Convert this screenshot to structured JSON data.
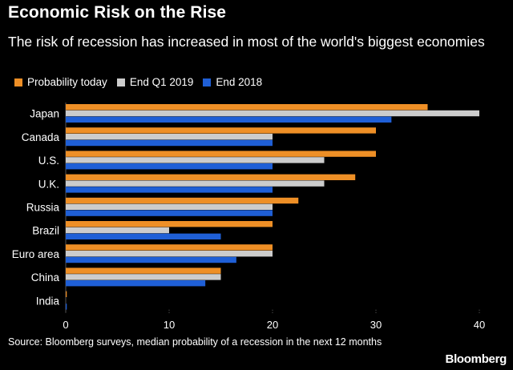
{
  "header": {
    "title": "Economic Risk on the Rise",
    "subtitle": "The risk of recession has increased in most of the world's biggest economies"
  },
  "colors": {
    "today": "#ee8f26",
    "q1_2019": "#cccccc",
    "end_2018": "#1f5fd6"
  },
  "footer": {
    "source": "Source: Bloomberg surveys, median probability of a recession in the next 12 months",
    "brand": "Bloomberg"
  },
  "chart_data": {
    "type": "bar",
    "orientation": "horizontal",
    "categories": [
      "Japan",
      "Canada",
      "U.S.",
      "U.K.",
      "Russia",
      "Brazil",
      "Euro area",
      "China",
      "India"
    ],
    "series": [
      {
        "name": "Probability today",
        "values": [
          35,
          30,
          30,
          28,
          22.5,
          20,
          20,
          15,
          0.1
        ]
      },
      {
        "name": "End Q1 2019",
        "values": [
          40,
          20,
          25,
          25,
          20,
          10,
          20,
          15,
          0
        ]
      },
      {
        "name": "End 2018",
        "values": [
          31.5,
          20,
          20,
          20,
          20,
          15,
          16.5,
          13.5,
          0.1
        ]
      }
    ],
    "xlim": [
      0,
      40
    ],
    "xticks": [
      0,
      10,
      20,
      30,
      40
    ],
    "legend_position": "top-left",
    "grid": false
  }
}
